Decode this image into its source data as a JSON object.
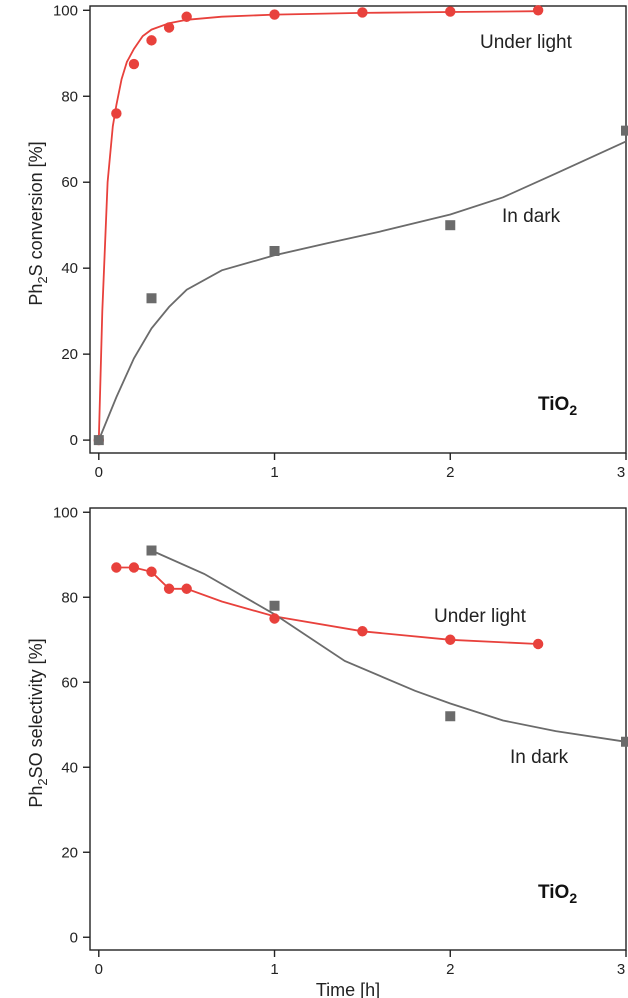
{
  "colors": {
    "light": "#e8413c",
    "dark": "#6b6b6b"
  },
  "chart_data": [
    {
      "type": "scatter",
      "xlabel": "",
      "ylabel": "Ph2S conversion [%]",
      "ylabel_parts": [
        "Ph",
        "2",
        "S conversion [%]"
      ],
      "xlim": [
        -0.05,
        3.0
      ],
      "ylim": [
        -3,
        101
      ],
      "xticks": [
        0,
        1,
        2,
        3
      ],
      "yticks": [
        0,
        20,
        40,
        60,
        80,
        100
      ],
      "catalyst": {
        "base": "TiO",
        "sub": "2"
      },
      "series": [
        {
          "name": "Under light",
          "marker": "circle",
          "x": [
            0,
            0.1,
            0.2,
            0.3,
            0.4,
            0.5,
            1.0,
            1.5,
            2.0,
            2.5
          ],
          "y": [
            0,
            76,
            87.5,
            93,
            96,
            98.5,
            99,
            99.5,
            99.7,
            100
          ],
          "fit_x": [
            0,
            0.02,
            0.05,
            0.08,
            0.1,
            0.13,
            0.16,
            0.2,
            0.25,
            0.3,
            0.4,
            0.5,
            0.7,
            1.0,
            1.5,
            2.0,
            2.5
          ],
          "fit_y": [
            0,
            30,
            60,
            73,
            78,
            84,
            88,
            91,
            94,
            95.5,
            97,
            97.8,
            98.5,
            99,
            99.4,
            99.6,
            99.8
          ]
        },
        {
          "name": "In dark",
          "marker": "square",
          "x": [
            0,
            0.3,
            1.0,
            2.0,
            3.0
          ],
          "y": [
            0,
            33,
            44,
            50,
            72
          ],
          "fit_x": [
            0,
            0.1,
            0.2,
            0.3,
            0.4,
            0.5,
            0.7,
            1.0,
            1.3,
            1.6,
            2.0,
            2.3,
            2.6,
            3.0
          ],
          "fit_y": [
            0,
            10,
            19,
            26,
            31,
            35,
            39.5,
            43,
            45.8,
            48.5,
            52.5,
            56.5,
            62,
            69.5
          ]
        }
      ]
    },
    {
      "type": "scatter",
      "xlabel": "Time [h]",
      "ylabel": "Ph2SO selectivity [%]",
      "ylabel_parts": [
        "Ph",
        "2",
        "SO selectivity [%]"
      ],
      "xlim": [
        -0.05,
        3.0
      ],
      "ylim": [
        -3,
        101
      ],
      "xticks": [
        0,
        1,
        2,
        3
      ],
      "yticks": [
        0,
        20,
        40,
        60,
        80,
        100
      ],
      "catalyst": {
        "base": "TiO",
        "sub": "2"
      },
      "series": [
        {
          "name": "Under light",
          "marker": "circle",
          "x": [
            0.1,
            0.2,
            0.3,
            0.4,
            0.5,
            1.0,
            1.5,
            2.0,
            2.5
          ],
          "y": [
            87,
            87,
            86,
            82,
            82,
            75,
            72,
            70,
            69
          ],
          "fit_x": [
            0.1,
            0.2,
            0.3,
            0.4,
            0.5,
            0.7,
            1.0,
            1.5,
            2.0,
            2.5
          ],
          "fit_y": [
            87,
            87,
            86,
            82,
            82,
            79,
            75.5,
            72,
            70,
            69
          ]
        },
        {
          "name": "In dark",
          "marker": "square",
          "x": [
            0.3,
            1.0,
            2.0,
            3.0
          ],
          "y": [
            91,
            78,
            52,
            46
          ],
          "fit_x": [
            0.3,
            0.6,
            1.0,
            1.4,
            1.8,
            2.0,
            2.3,
            2.6,
            3.0
          ],
          "fit_y": [
            91,
            85.5,
            76,
            65,
            58,
            55,
            51,
            48.5,
            46
          ]
        }
      ]
    }
  ]
}
